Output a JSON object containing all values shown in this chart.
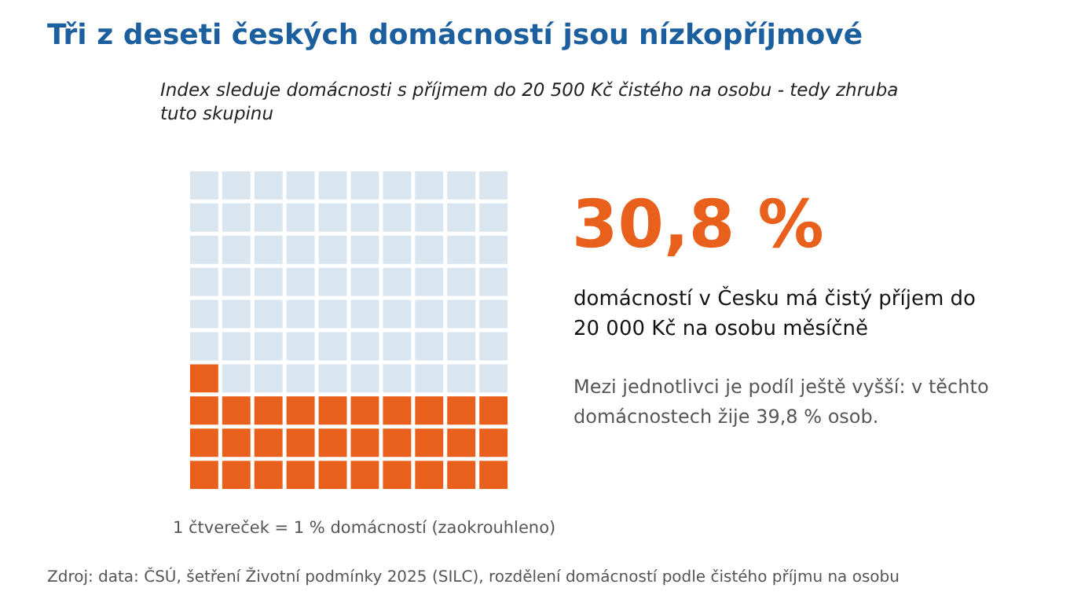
{
  "chart_data": {
    "type": "other",
    "title": "Tři z deseti českých domácností jsou nízkopříjmové",
    "subtitle": "Index sleduje domácnosti s příjmem do 20 500 Kč čistého na osobu - tedy zhruba tuto skupinu",
    "categories": [
      null
    ],
    "values": [
      30.8
    ],
    "value_labels": [
      "30,8 %"
    ],
    "colors": [
      "#e8601c"
    ],
    "annotations": [
      "domácností v Česku má čistý příjem do 20 000 Kč na osobu měsíčně",
      "Mezi jednotlivci je podíl ještě vyšší: v těchto domácnostech žije 39,8 % osob.",
      "1 čtvereček = 1 % domácností (zaokrouhleno)",
      "Zdroj: data: ČSÚ, šetření Životní podmínky 2025 (SILC), rozdělení domácností podle čistého příjmu na osobu"
    ]
  }
}
